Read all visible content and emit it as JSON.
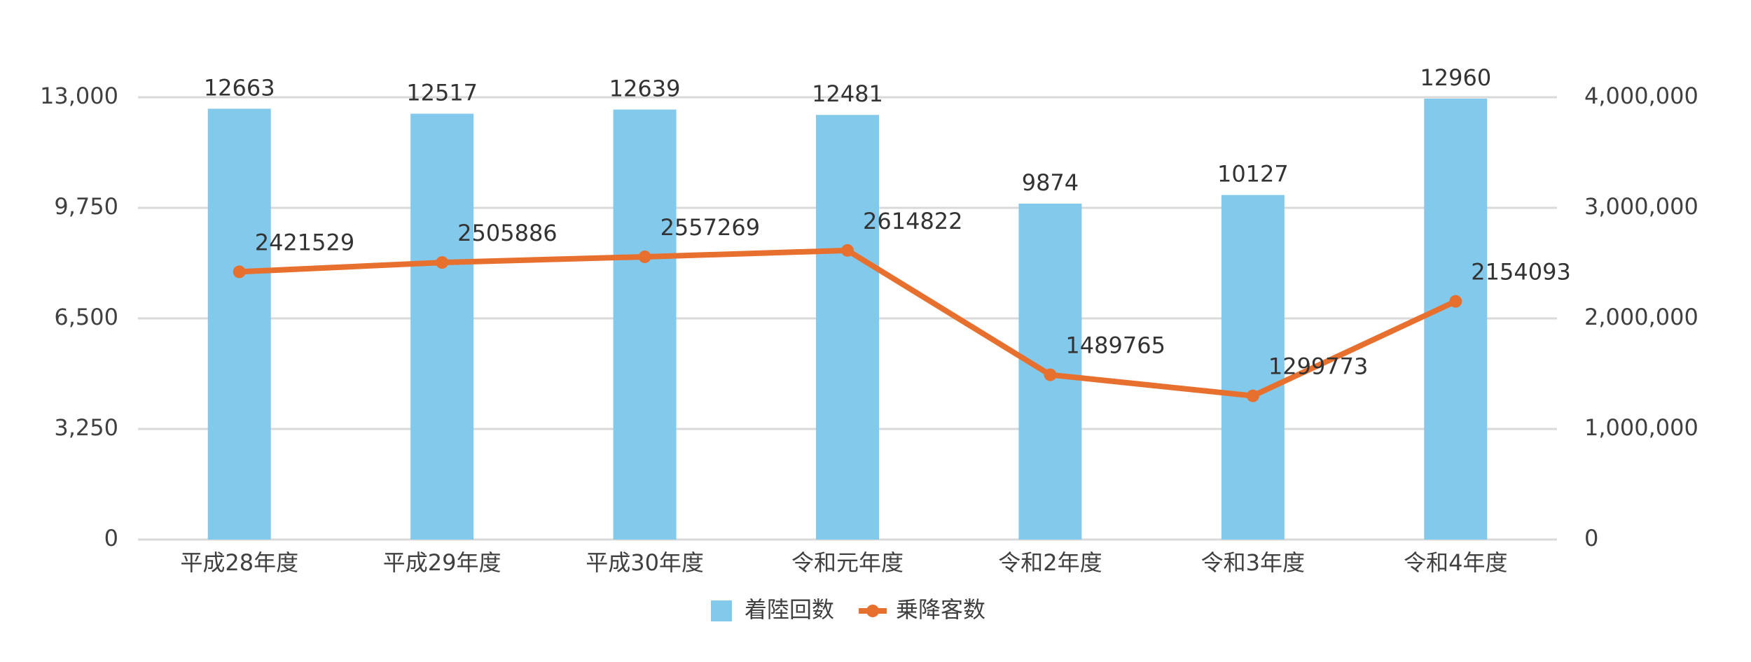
{
  "chart_data": {
    "type": "combo",
    "categories": [
      "平成28年度",
      "平成29年度",
      "平成30年度",
      "令和元年度",
      "令和2年度",
      "令和3年度",
      "令和4年度"
    ],
    "series": [
      {
        "name": "着陸回数",
        "type": "bar",
        "color": "#83c9eb",
        "values": [
          12663,
          12517,
          12639,
          12481,
          9874,
          10127,
          12960
        ]
      },
      {
        "name": "乗降客数",
        "type": "line",
        "axis": "y2",
        "color": "#e8702f",
        "values": [
          2421529,
          2505886,
          2557269,
          2614822,
          1489765,
          1299773,
          2154093
        ]
      }
    ],
    "ylim": [
      0,
      13000
    ],
    "yticks": [
      0,
      {
        "value": 3250,
        "label": "3,250"
      },
      {
        "value": 6500,
        "label": "6,500"
      },
      {
        "value": 9750,
        "label": "9,750"
      },
      {
        "value": 13000,
        "label": "13,000"
      }
    ],
    "y2lim": [
      0,
      4000000
    ],
    "y2ticks": [
      0,
      {
        "value": 1000000,
        "label": "1,000,000"
      },
      {
        "value": 2000000,
        "label": "2,000,000"
      },
      {
        "value": 3000000,
        "label": "3,000,000"
      },
      {
        "value": 4000000,
        "label": "4,000,000"
      }
    ],
    "grid": true,
    "legend": "bottom"
  }
}
